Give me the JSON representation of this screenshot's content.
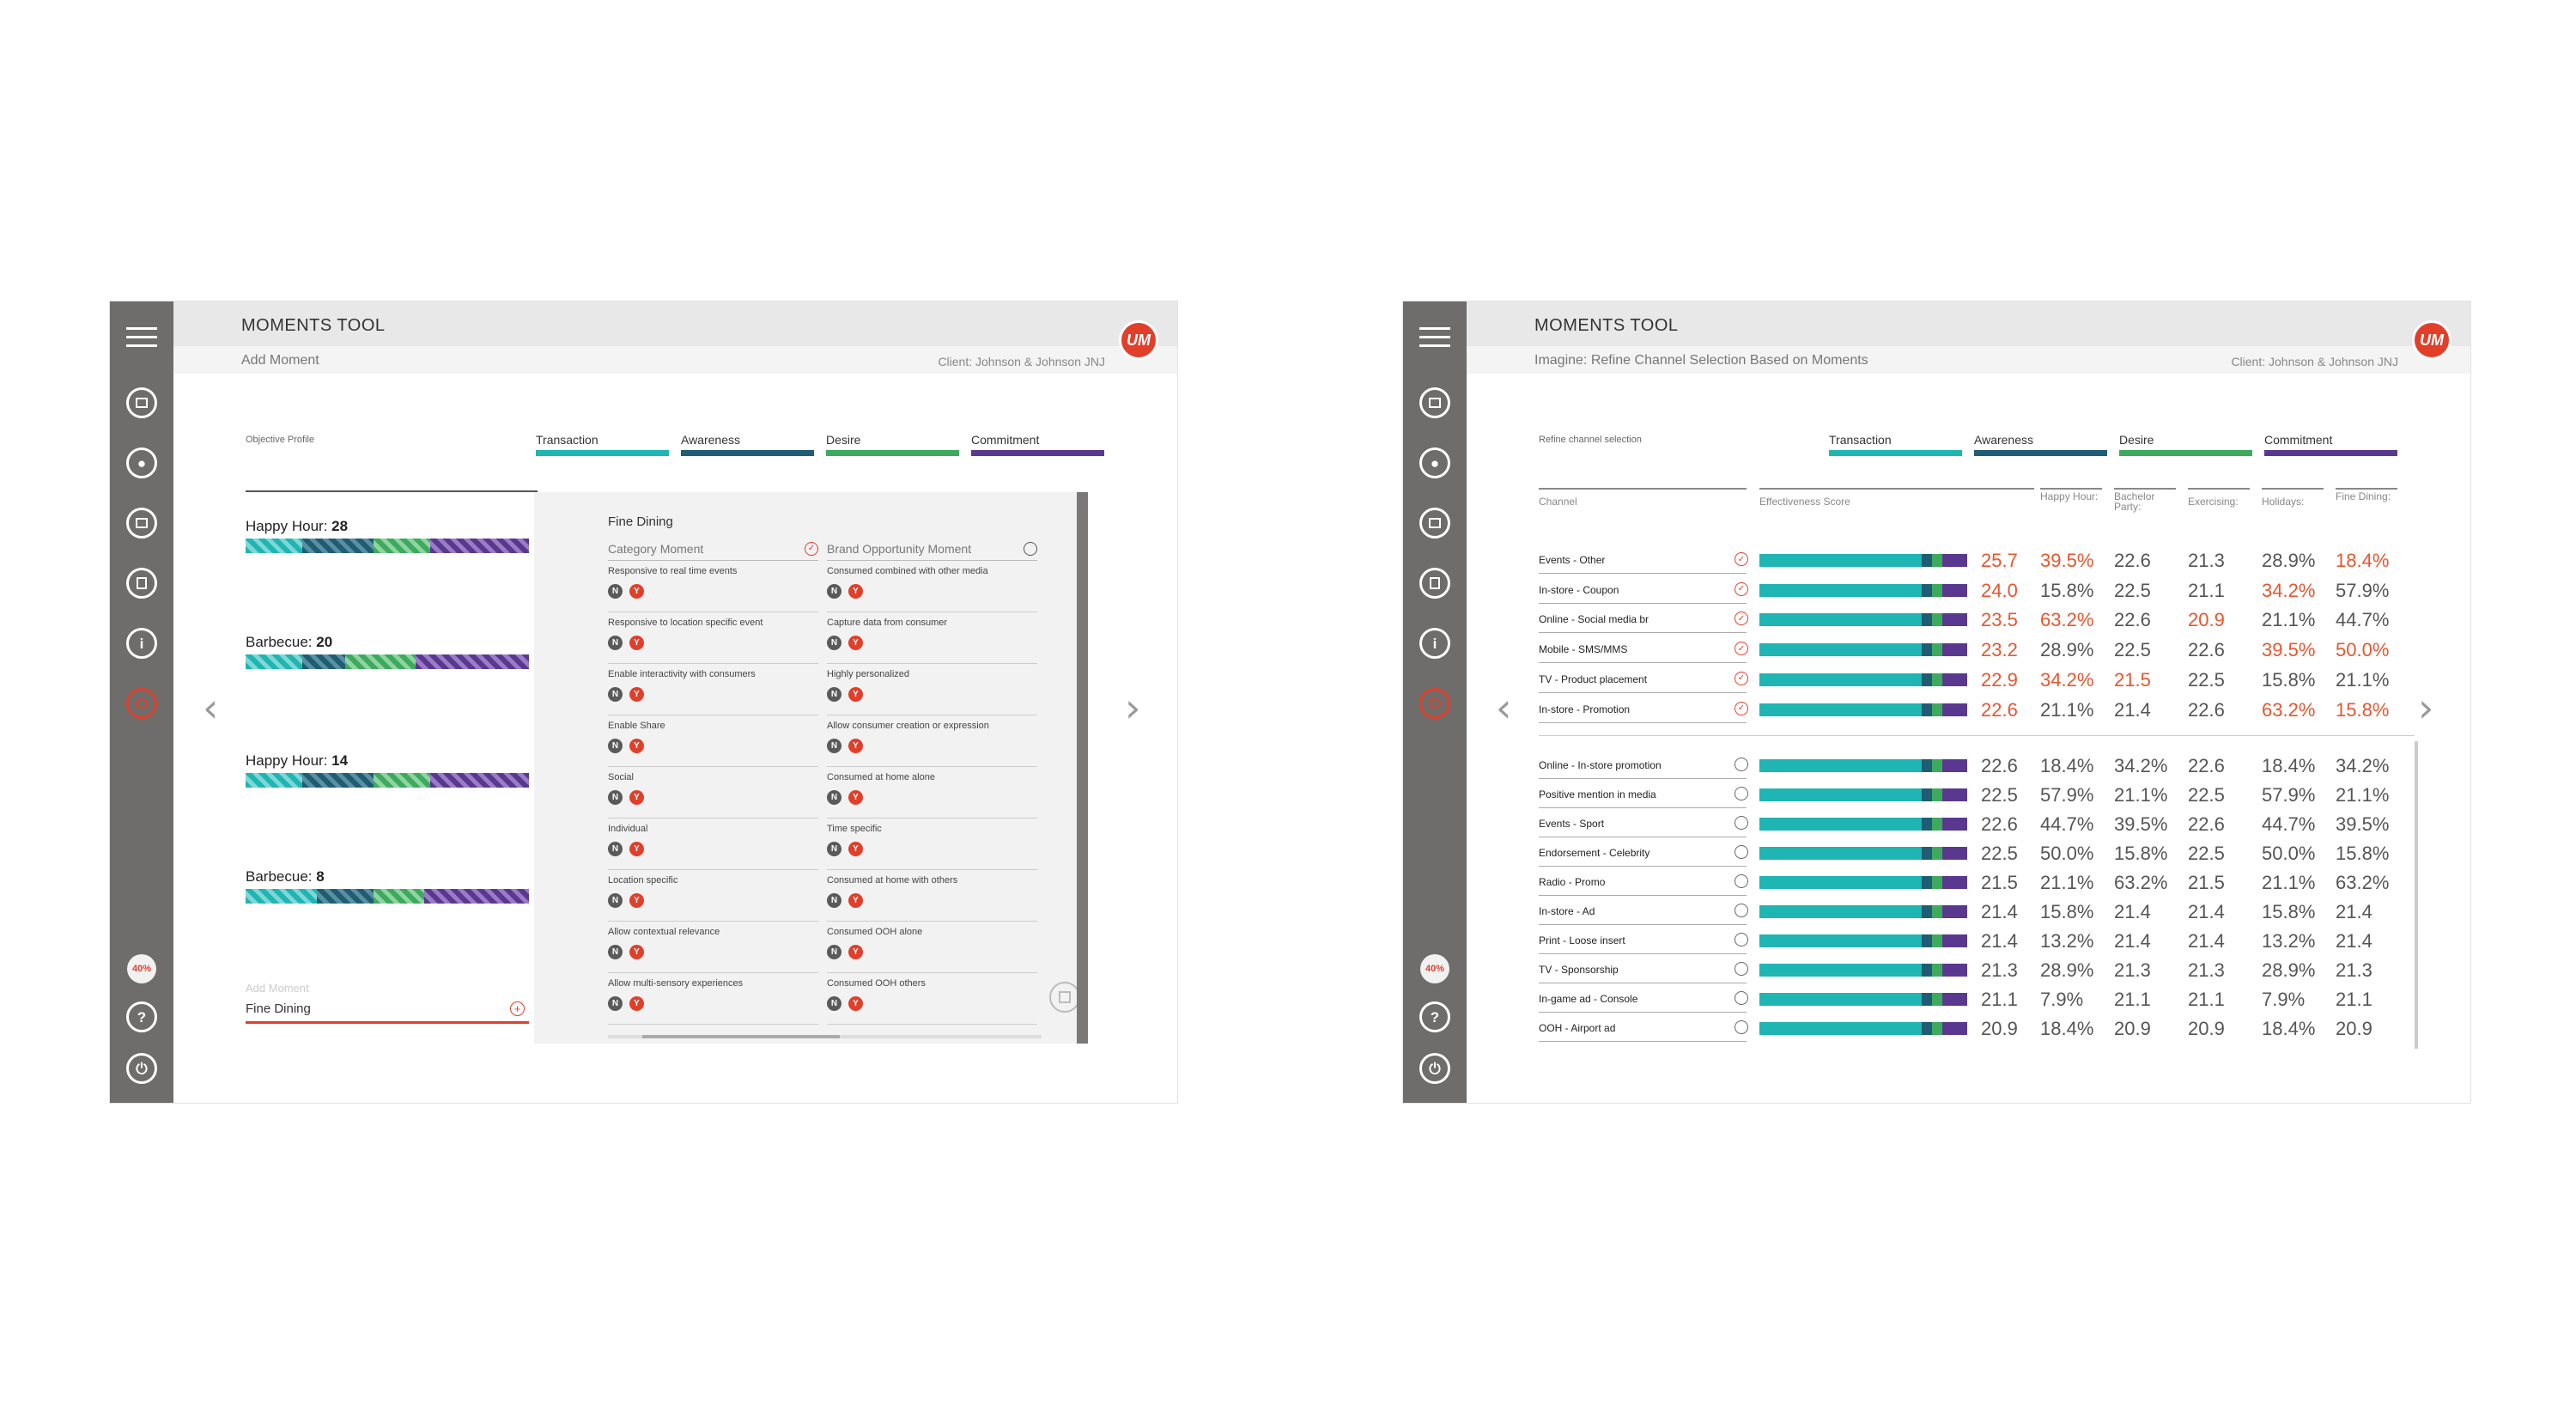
{
  "common": {
    "app_title": "MOMENTS TOOL",
    "client": "Client: Johnson & Johnson JNJ",
    "logo_text": "UM",
    "progress_badge": "40%",
    "objectives": [
      {
        "label": "Transaction",
        "color": "#1fb5b2"
      },
      {
        "label": "Awareness",
        "color": "#1e5d74"
      },
      {
        "label": "Desire",
        "color": "#3daa5d"
      },
      {
        "label": "Commitment",
        "color": "#5a3890"
      }
    ],
    "nav_prev": "‹",
    "nav_next": "›",
    "sidebar_icons": [
      "menu-icon",
      "home-icon",
      "user-icon",
      "briefcase-icon",
      "document-icon",
      "info-icon",
      "target-icon",
      "help-icon",
      "power-icon"
    ]
  },
  "screen1": {
    "subtitle": "Add Moment",
    "objective_profile_label": "Objective Profile",
    "moments": [
      {
        "name": "Happy Hour: ",
        "score": "28",
        "mix": [
          0.2,
          0.25,
          0.2,
          0.35
        ]
      },
      {
        "name": "Barbecue: ",
        "score": "20",
        "mix": [
          0.2,
          0.15,
          0.25,
          0.4
        ]
      },
      {
        "name": "Happy Hour: ",
        "score": "14",
        "mix": [
          0.2,
          0.25,
          0.2,
          0.35
        ]
      },
      {
        "name": "Barbecue: ",
        "score": "8",
        "mix": [
          0.25,
          0.2,
          0.18,
          0.37
        ]
      }
    ],
    "add_moment_placeholder": "Add Moment",
    "add_moment_value": "Fine Dining",
    "detail": {
      "title": "Fine Dining",
      "category_header": "Category Moment",
      "brand_header": "Brand Opportunity Moment",
      "category_criteria": [
        "Responsive to real time events",
        "Responsive to location specific event",
        "Enable interactivity with consumers",
        "Enable Share",
        "Social",
        "Individual",
        "Location specific",
        "Allow contextual relevance",
        "Allow multi-sensory experiences"
      ],
      "brand_criteria": [
        "Consumed combined with other media",
        "Capture data from consumer",
        "Highly personalized",
        "Allow consumer creation or expression",
        "Consumed at home alone",
        "Time specific",
        "Consumed at home with others",
        "Consumed OOH alone",
        "Consumed OOH others"
      ],
      "no_label": "N",
      "yes_label": "Y"
    }
  },
  "screen2": {
    "subtitle": "Imagine: Refine Channel Selection Based on Moments",
    "refine_label": "Refine channel selection",
    "headers": {
      "channel": "Channel",
      "score": "Effectiveness Score",
      "happy_hour": "Happy Hour:",
      "bachelor_party": "Bachelor Party:",
      "exercising": "Exercising:",
      "holidays": "Holidays:",
      "fine_dining": "Fine Dining:"
    },
    "selected_rows": [
      {
        "channel": "Events - Other",
        "score": "25.7",
        "vals": [
          "39.5%",
          "22.6",
          "21.3",
          "28.9%",
          "18.4%"
        ],
        "hi": [
          true,
          true,
          false,
          false,
          false,
          true
        ]
      },
      {
        "channel": "In-store - Coupon",
        "score": "24.0",
        "vals": [
          "15.8%",
          "22.5",
          "21.1",
          "34.2%",
          "57.9%"
        ],
        "hi": [
          true,
          false,
          false,
          false,
          true,
          false
        ]
      },
      {
        "channel": "Online - Social media br",
        "score": "23.5",
        "vals": [
          "63.2%",
          "22.6",
          "20.9",
          "21.1%",
          "44.7%"
        ],
        "hi": [
          true,
          true,
          false,
          true,
          false,
          false
        ]
      },
      {
        "channel": "Mobile - SMS/MMS",
        "score": "23.2",
        "vals": [
          "28.9%",
          "22.5",
          "22.6",
          "39.5%",
          "50.0%"
        ],
        "hi": [
          true,
          false,
          false,
          false,
          true,
          true
        ]
      },
      {
        "channel": "TV - Product placement",
        "score": "22.9",
        "vals": [
          "34.2%",
          "21.5",
          "22.5",
          "15.8%",
          "21.1%"
        ],
        "hi": [
          true,
          true,
          true,
          false,
          false,
          false
        ]
      },
      {
        "channel": "In-store - Promotion",
        "score": "22.6",
        "vals": [
          "21.1%",
          "21.4",
          "22.6",
          "63.2%",
          "15.8%"
        ],
        "hi": [
          true,
          false,
          false,
          false,
          true,
          true
        ]
      }
    ],
    "other_rows": [
      {
        "channel": "Online - In-store promotion",
        "score": "22.6",
        "vals": [
          "18.4%",
          "34.2%",
          "22.6",
          "18.4%",
          "34.2%"
        ]
      },
      {
        "channel": "Positive mention in media",
        "score": "22.5",
        "vals": [
          "57.9%",
          "21.1%",
          "22.5",
          "57.9%",
          "21.1%"
        ]
      },
      {
        "channel": "Events - Sport",
        "score": "22.6",
        "vals": [
          "44.7%",
          "39.5%",
          "22.6",
          "44.7%",
          "39.5%"
        ]
      },
      {
        "channel": "Endorsement - Celebrity",
        "score": "22.5",
        "vals": [
          "50.0%",
          "15.8%",
          "22.5",
          "50.0%",
          "15.8%"
        ]
      },
      {
        "channel": "Radio - Promo",
        "score": "21.5",
        "vals": [
          "21.1%",
          "63.2%",
          "21.5",
          "21.1%",
          "63.2%"
        ]
      },
      {
        "channel": "In-store - Ad",
        "score": "21.4",
        "vals": [
          "15.8%",
          "21.4",
          "21.4",
          "15.8%",
          "21.4"
        ]
      },
      {
        "channel": "Print - Loose insert",
        "score": "21.4",
        "vals": [
          "13.2%",
          "21.4",
          "21.4",
          "13.2%",
          "21.4"
        ]
      },
      {
        "channel": "TV - Sponsorship",
        "score": "21.3",
        "vals": [
          "28.9%",
          "21.3",
          "21.3",
          "28.9%",
          "21.3"
        ]
      },
      {
        "channel": "In-game ad - Console",
        "score": "21.1",
        "vals": [
          "7.9%",
          "21.1",
          "21.1",
          "7.9%",
          "21.1"
        ]
      },
      {
        "channel": "OOH - Airport ad",
        "score": "20.9",
        "vals": [
          "18.4%",
          "20.9",
          "20.9",
          "18.4%",
          "20.9"
        ]
      }
    ],
    "bar_mix": [
      0.78,
      0.05,
      0.05,
      0.12
    ],
    "check_mark": "✓"
  }
}
